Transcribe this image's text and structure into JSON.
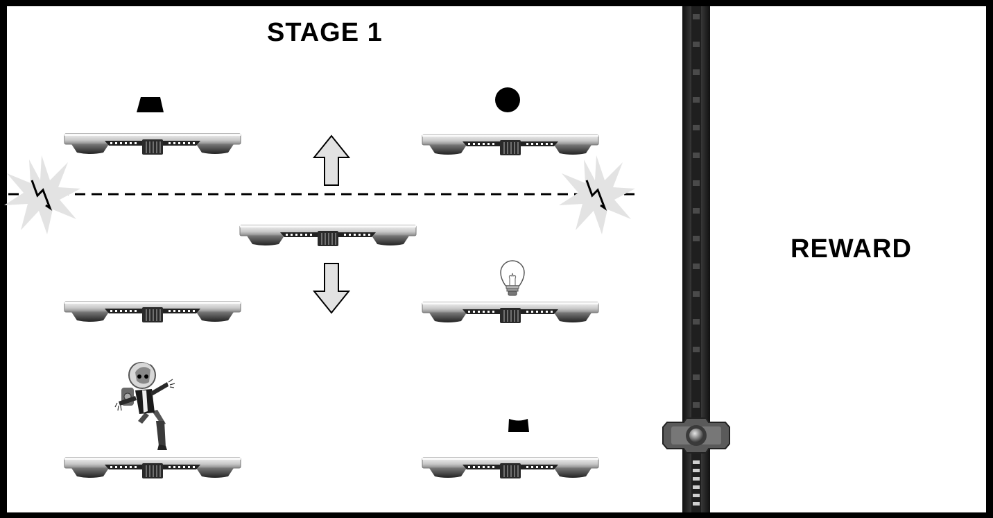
{
  "game": {
    "stage_title": "STAGE 1",
    "reward_label": "REWARD"
  },
  "platforms": [
    {
      "id": "top-left",
      "item": "trapezoid"
    },
    {
      "id": "top-right",
      "item": "circle"
    },
    {
      "id": "middle-center",
      "item": null
    },
    {
      "id": "lower-left",
      "item": null
    },
    {
      "id": "lower-right",
      "item": "lightbulb"
    },
    {
      "id": "bottom-left",
      "item": "astronaut-character"
    },
    {
      "id": "bottom-right",
      "item": "inverted-trapezoid"
    }
  ],
  "icons": {
    "up_arrow": "arrow-up-icon",
    "down_arrow": "arrow-down-icon",
    "laser_emitter": "spark-burst-icon",
    "lightbulb": "lightbulb-icon"
  },
  "colors": {
    "background": "#ffffff",
    "border": "#000000",
    "platform_top": "#d8d8d8",
    "platform_dark": "#555555",
    "spark": "#e2e2e2"
  }
}
